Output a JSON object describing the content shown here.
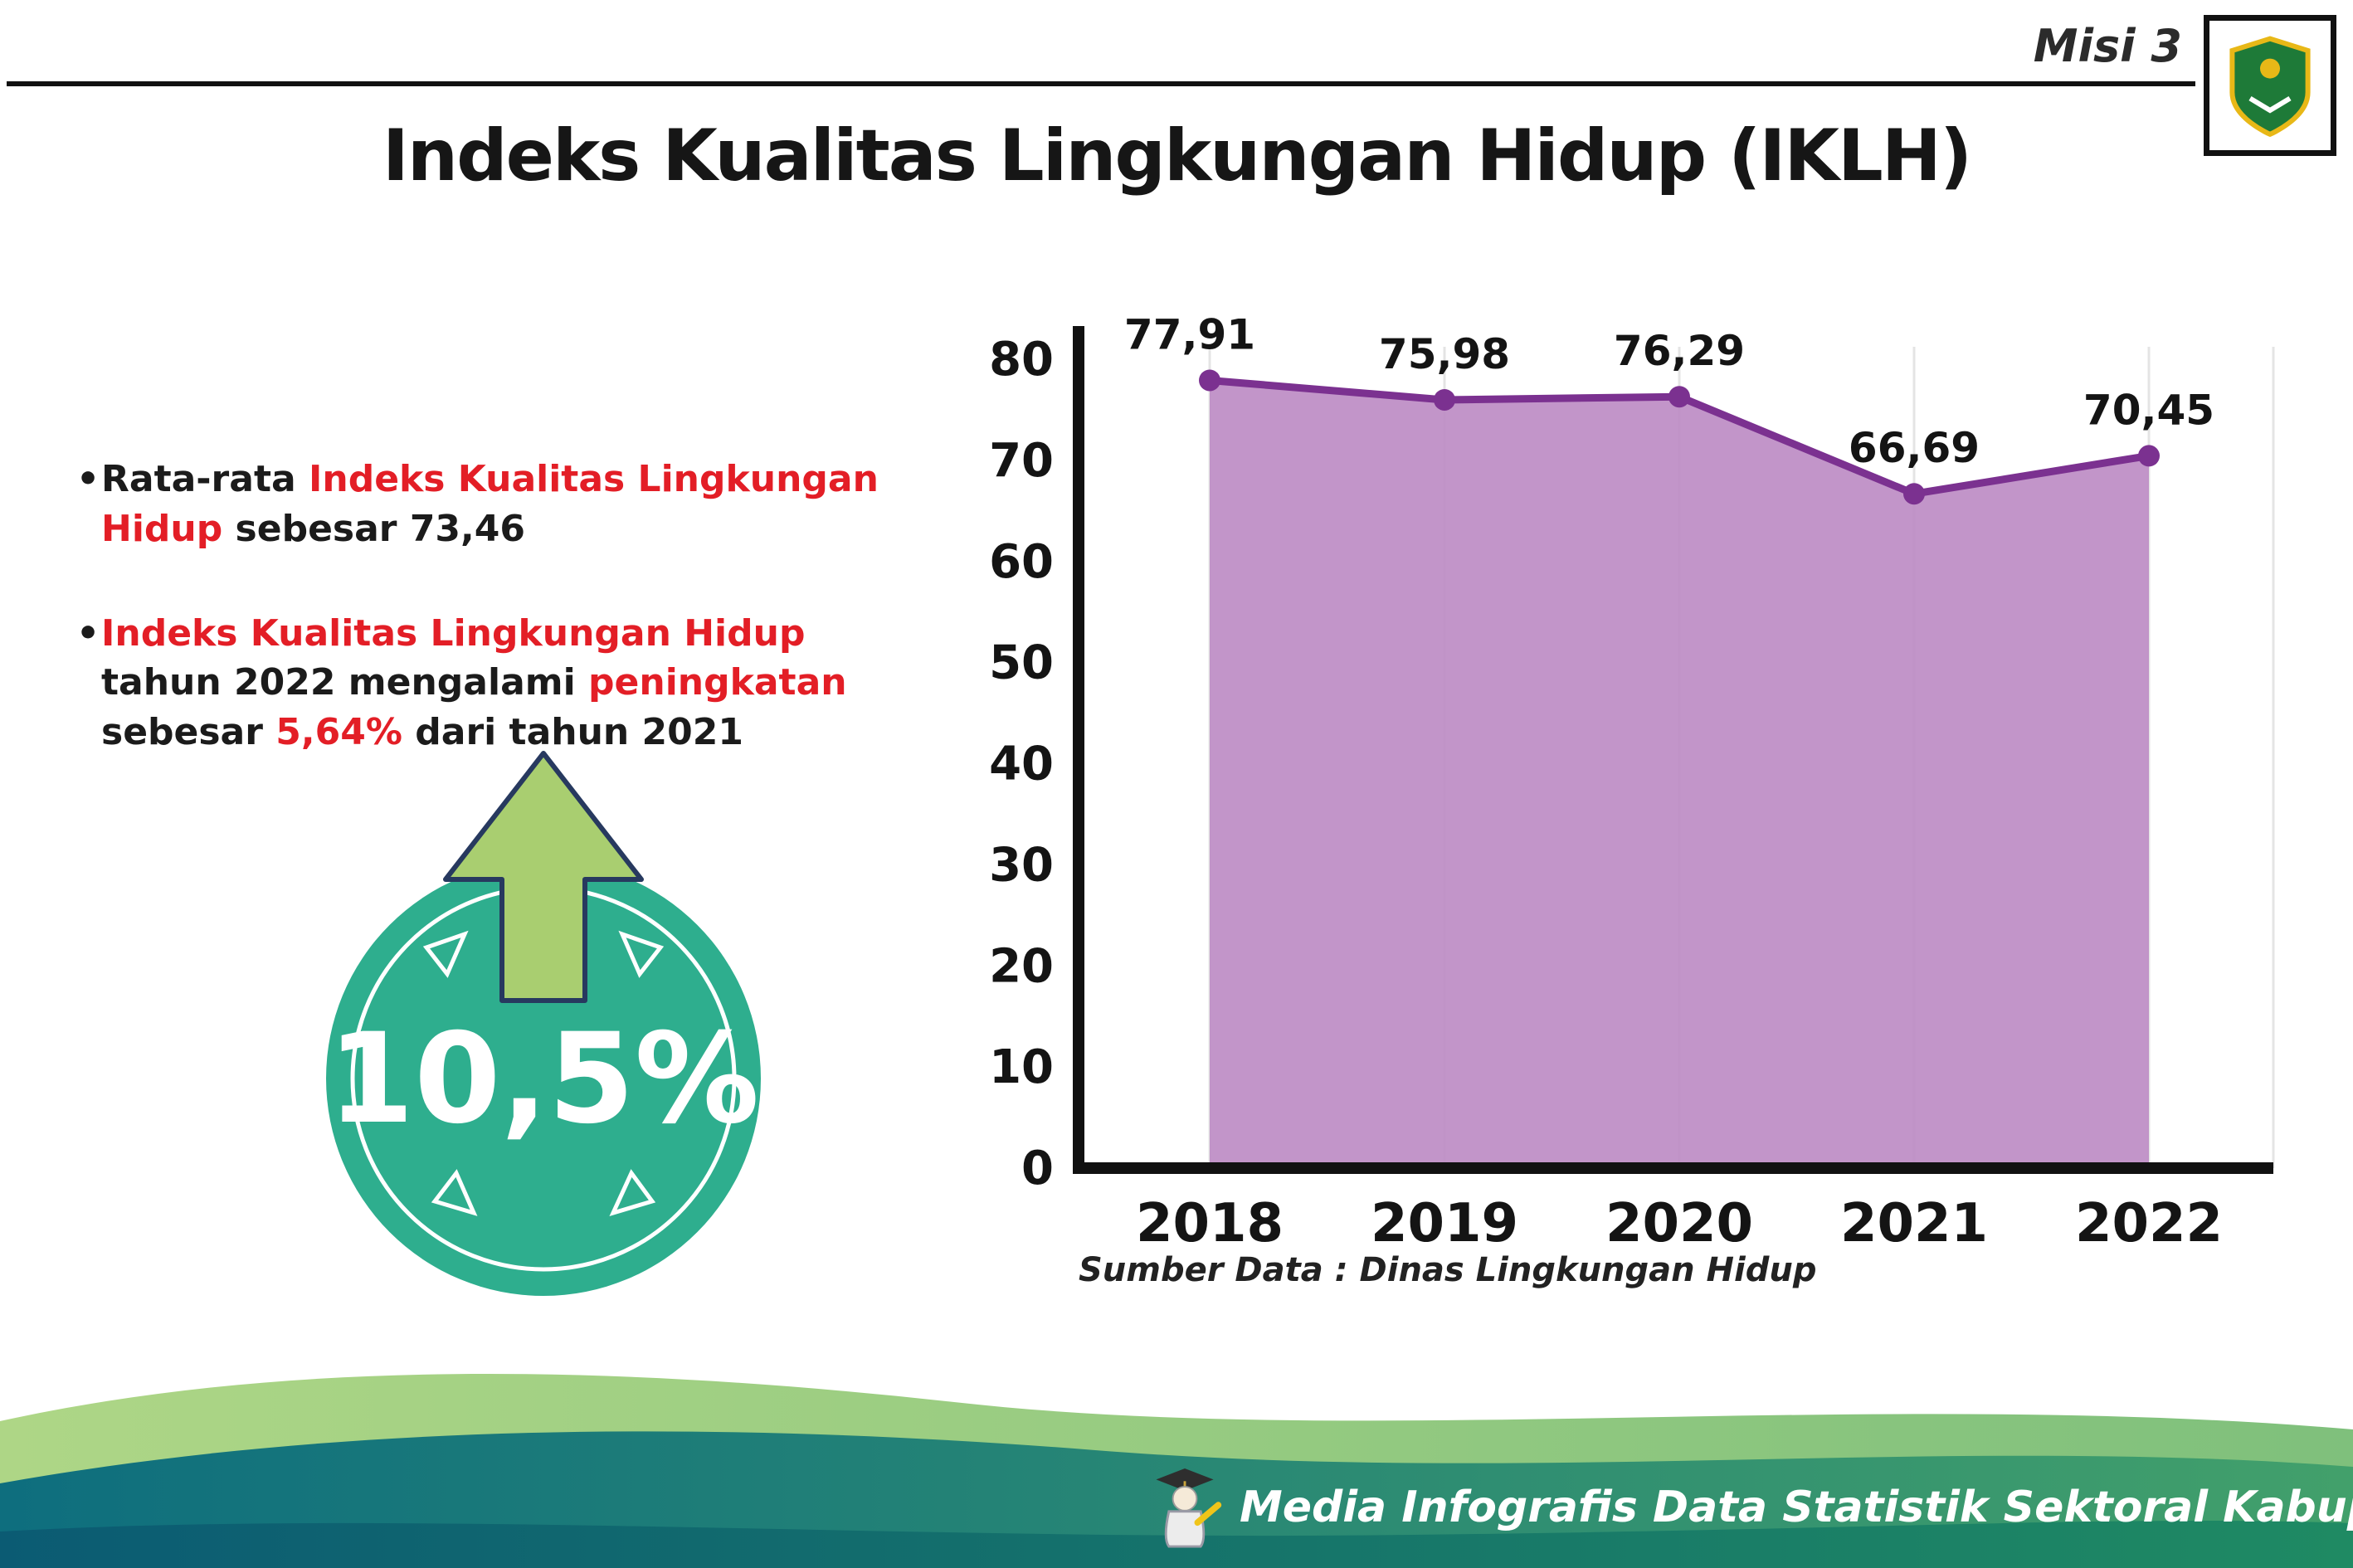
{
  "header": {
    "misi_label": "Misi 3",
    "title": "Indeks Kualitas Lingkungan Hidup (IKLH)",
    "logo_name": "kabupaten-madiun-crest"
  },
  "bullets": {
    "b1": {
      "s1": "Rata-rata ",
      "s2": "Indeks Kualitas Lingkungan Hidup",
      "s3": " sebesar 73,46"
    },
    "b2": {
      "s1": "Indeks Kualitas Lingkungan Hidup",
      "s2": " tahun 2022 mengalami ",
      "s3": "peningkatan",
      "s4": " sebesar ",
      "s5": "5,64%",
      "s6": " dari tahun 2021"
    }
  },
  "badge": {
    "value": "10,5%",
    "direction": "up"
  },
  "chart_data": {
    "type": "area",
    "categories": [
      "2018",
      "2019",
      "2020",
      "2021",
      "2022"
    ],
    "values": [
      77.91,
      75.98,
      76.29,
      66.69,
      70.45
    ],
    "value_labels": [
      "77,91",
      "75,98",
      "76,29",
      "66,69",
      "70,45"
    ],
    "title": "",
    "xlabel": "",
    "ylabel": "",
    "ylim": [
      0,
      80
    ],
    "yticks": [
      0,
      10,
      20,
      30,
      40,
      50,
      60,
      70,
      80
    ],
    "grid": "faint vertical lines at each year",
    "legend": "none",
    "fill_color": "#bd8cc4",
    "line_color": "#7b3190"
  },
  "source_note": "Sumber Data : Dinas Lingkungan Hidup",
  "footer": {
    "text": "Media Infografis Data Statistik Sektoral Kabupaten Madiun |"
  },
  "colors": {
    "accent_red": "#e31e26",
    "badge_teal": "#2eae8e",
    "arrow_green": "#a9ce70",
    "arrow_outline_navy": "#27395f",
    "chart_fill": "#bd8cc4",
    "chart_line": "#7b3190",
    "footer_teal_dark": "#0e6e7e",
    "footer_green_light": "#9ccd7f",
    "axis_black": "#111111"
  }
}
